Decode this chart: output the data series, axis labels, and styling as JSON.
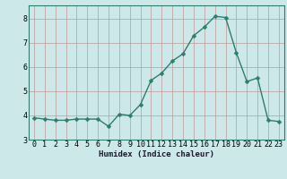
{
  "x": [
    0,
    1,
    2,
    3,
    4,
    5,
    6,
    7,
    8,
    9,
    10,
    11,
    12,
    13,
    14,
    15,
    16,
    17,
    18,
    19,
    20,
    21,
    22,
    23
  ],
  "y": [
    3.9,
    3.85,
    3.8,
    3.8,
    3.85,
    3.85,
    3.85,
    3.55,
    4.05,
    4.0,
    4.45,
    5.45,
    5.75,
    6.25,
    6.55,
    7.3,
    7.65,
    8.1,
    8.05,
    6.6,
    5.4,
    5.55,
    3.8,
    3.75
  ],
  "line_color": "#2e7d6e",
  "marker": "D",
  "marker_size": 2.5,
  "xlabel": "Humidex (Indice chaleur)",
  "xlim": [
    -0.5,
    23.5
  ],
  "ylim": [
    3.0,
    8.55
  ],
  "yticks": [
    3,
    4,
    5,
    6,
    7,
    8
  ],
  "xtick_labels": [
    "0",
    "1",
    "2",
    "3",
    "4",
    "5",
    "6",
    "7",
    "8",
    "9",
    "10",
    "11",
    "12",
    "13",
    "14",
    "15",
    "16",
    "17",
    "18",
    "19",
    "20",
    "21",
    "22",
    "23"
  ],
  "bg_color": "#cce8e8",
  "grid_color": "#c09898",
  "label_fontsize": 6.5,
  "tick_fontsize": 6,
  "linewidth": 1.0
}
